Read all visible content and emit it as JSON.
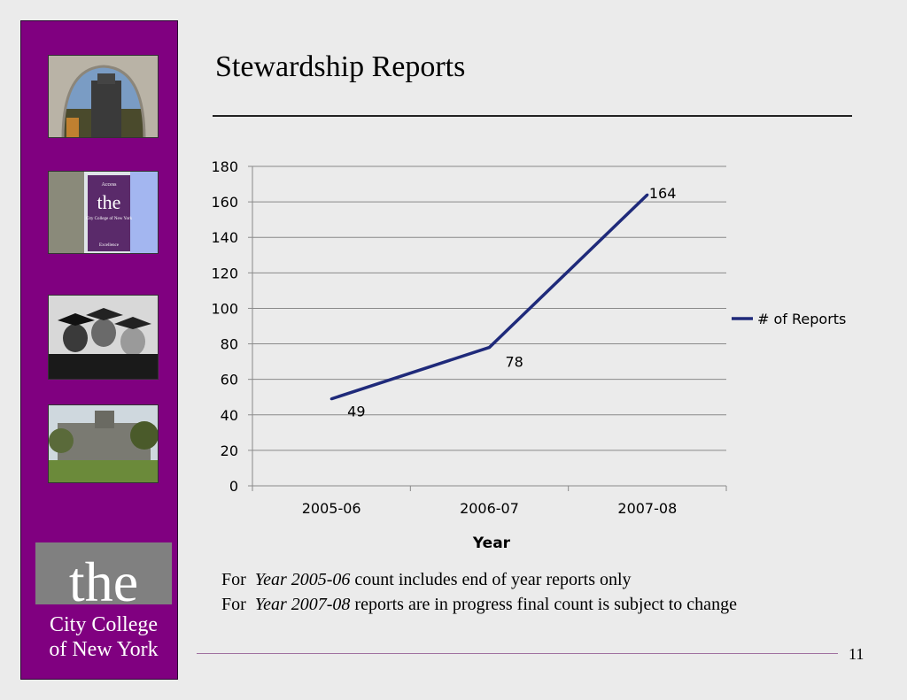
{
  "slide": {
    "title": "Stewardship Reports",
    "page_number": "11",
    "notes": [
      {
        "prefix": "For",
        "italic": "Year 2005-06",
        "rest": " count includes end of year reports only"
      },
      {
        "prefix": "For",
        "italic": "Year 2007-08",
        "rest": " reports are in progress final count is subject to change"
      }
    ],
    "logo": {
      "line1": "the",
      "line2": "City College",
      "line3": "of New York"
    },
    "banner_text": {
      "top": "Access",
      "the": "the",
      "mid": "City College of New York",
      "bottom": "Excellence"
    }
  },
  "colors": {
    "sidebar": "#800080",
    "line": "#1f2a7a"
  },
  "chart_data": {
    "type": "line",
    "categories": [
      "2005-06",
      "2006-07",
      "2007-08"
    ],
    "series": [
      {
        "name": "# of Reports",
        "values": [
          49,
          78,
          164
        ]
      }
    ],
    "data_labels": [
      "49",
      "78",
      "164"
    ],
    "xlabel": "Year",
    "ylabel": "",
    "ylim": [
      0,
      180
    ],
    "yticks": [
      "0",
      "20",
      "40",
      "60",
      "80",
      "100",
      "120",
      "140",
      "160",
      "180"
    ],
    "grid": true,
    "legend_position": "right"
  }
}
